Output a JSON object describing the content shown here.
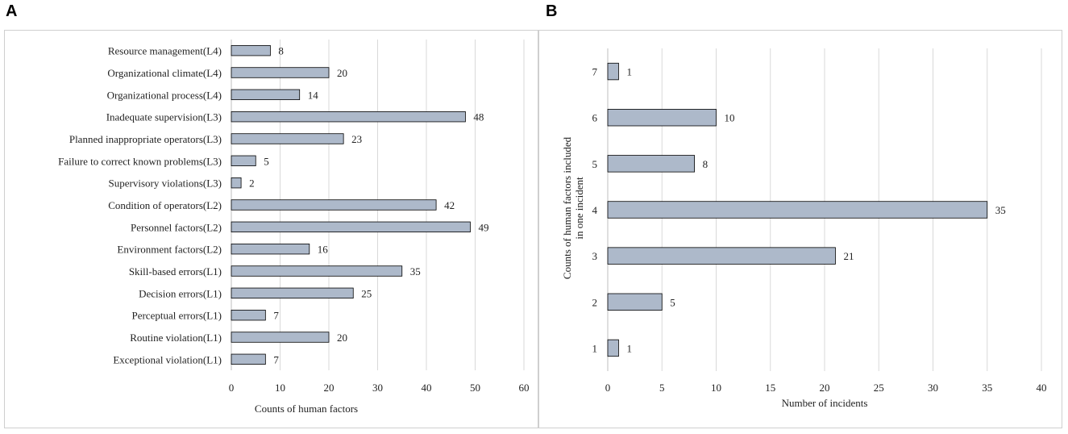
{
  "panels": {
    "a_label": "A",
    "b_label": "B"
  },
  "colors": {
    "bar_fill": "#adb9ca",
    "bar_stroke": "#000000",
    "grid": "#d9d9d9",
    "border": "#cfcfcf"
  },
  "chart_data": [
    {
      "type": "bar",
      "orientation": "horizontal",
      "categories": [
        "Resource management(L4)",
        "Organizational climate(L4)",
        "Organizational process(L4)",
        "Inadequate supervision(L3)",
        "Planned inappropriate operators(L3)",
        "Failure to correct known problems(L3)",
        "Supervisory violations(L3)",
        "Condition of operators(L2)",
        "Personnel factors(L2)",
        "Environment factors(L2)",
        "Skill-based errors(L1)",
        "Decision errors(L1)",
        "Perceptual errors(L1)",
        "Routine violation(L1)",
        "Exceptional violation(L1)"
      ],
      "values": [
        8,
        20,
        14,
        48,
        23,
        5,
        2,
        42,
        49,
        16,
        35,
        25,
        7,
        20,
        7
      ],
      "xlabel": "Counts of human factors",
      "ylabel": "",
      "xlim": [
        0,
        60
      ],
      "xticks": [
        "0",
        "10",
        "20",
        "30",
        "40",
        "50",
        "60"
      ],
      "grid": "vertical"
    },
    {
      "type": "bar",
      "orientation": "horizontal",
      "categories": [
        "7",
        "6",
        "5",
        "4",
        "3",
        "2",
        "1"
      ],
      "values": [
        1,
        10,
        8,
        35,
        21,
        5,
        1
      ],
      "xlabel": "Number of incidents",
      "ylabel_line1": "Counts of human factors included",
      "ylabel_line2": "in one incident",
      "xlim": [
        0,
        40
      ],
      "xticks": [
        "0",
        "5",
        "10",
        "15",
        "20",
        "25",
        "30",
        "35",
        "40"
      ],
      "grid": "vertical"
    }
  ]
}
